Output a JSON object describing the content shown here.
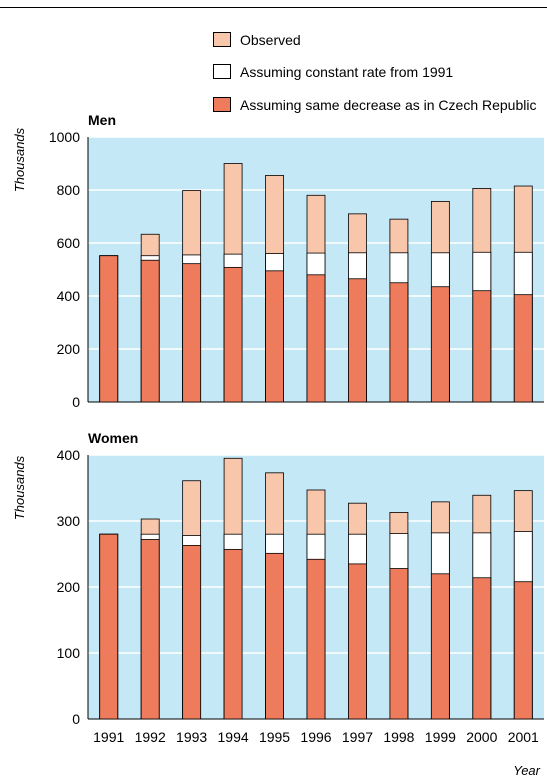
{
  "legend": [
    {
      "label": "Observed",
      "color": "#f8c6aa"
    },
    {
      "label": "Assuming constant rate from 1991",
      "color": "#ffffff"
    },
    {
      "label": "Assuming same decrease as in Czech Republic",
      "color": "#ee7b5c"
    }
  ],
  "colors": {
    "plot_background": "#c5e8f7",
    "gridline": "#ffffff",
    "observed": "#f8c6aa",
    "constant": "#ffffff",
    "czech": "#ee7b5c"
  },
  "chart_data": [
    {
      "type": "bar",
      "title": "Men",
      "ylabel": "Thousands",
      "xlabel": "",
      "ylim": [
        0,
        1000
      ],
      "yticks": [
        0,
        200,
        400,
        600,
        800,
        1000
      ],
      "grid": true,
      "categories": [
        "1991",
        "1992",
        "1993",
        "1994",
        "1995",
        "1996",
        "1997",
        "1998",
        "1999",
        "2000",
        "2001"
      ],
      "series": [
        {
          "name": "Observed",
          "values": [
            552,
            633,
            798,
            900,
            855,
            780,
            710,
            690,
            757,
            806,
            815
          ]
        },
        {
          "name": "Assuming constant rate from 1991",
          "values": [
            552,
            552,
            555,
            558,
            560,
            562,
            563,
            563,
            563,
            565,
            565
          ]
        },
        {
          "name": "Assuming same decrease as in Czech Republic",
          "values": [
            552,
            535,
            522,
            508,
            495,
            480,
            465,
            450,
            435,
            420,
            405
          ]
        }
      ]
    },
    {
      "type": "bar",
      "title": "Women",
      "ylabel": "Thousands",
      "xlabel": "Year",
      "ylim": [
        0,
        400
      ],
      "yticks": [
        0,
        100,
        200,
        300,
        400
      ],
      "grid": true,
      "categories": [
        "1991",
        "1992",
        "1993",
        "1994",
        "1995",
        "1996",
        "1997",
        "1998",
        "1999",
        "2000",
        "2001"
      ],
      "series": [
        {
          "name": "Observed",
          "values": [
            280,
            303,
            361,
            395,
            373,
            347,
            327,
            313,
            329,
            339,
            346
          ]
        },
        {
          "name": "Assuming constant rate from 1991",
          "values": [
            280,
            280,
            278,
            280,
            280,
            280,
            280,
            281,
            282,
            282,
            284
          ]
        },
        {
          "name": "Assuming same decrease as in Czech Republic",
          "values": [
            280,
            272,
            263,
            257,
            251,
            242,
            235,
            228,
            220,
            214,
            208
          ]
        }
      ]
    }
  ]
}
